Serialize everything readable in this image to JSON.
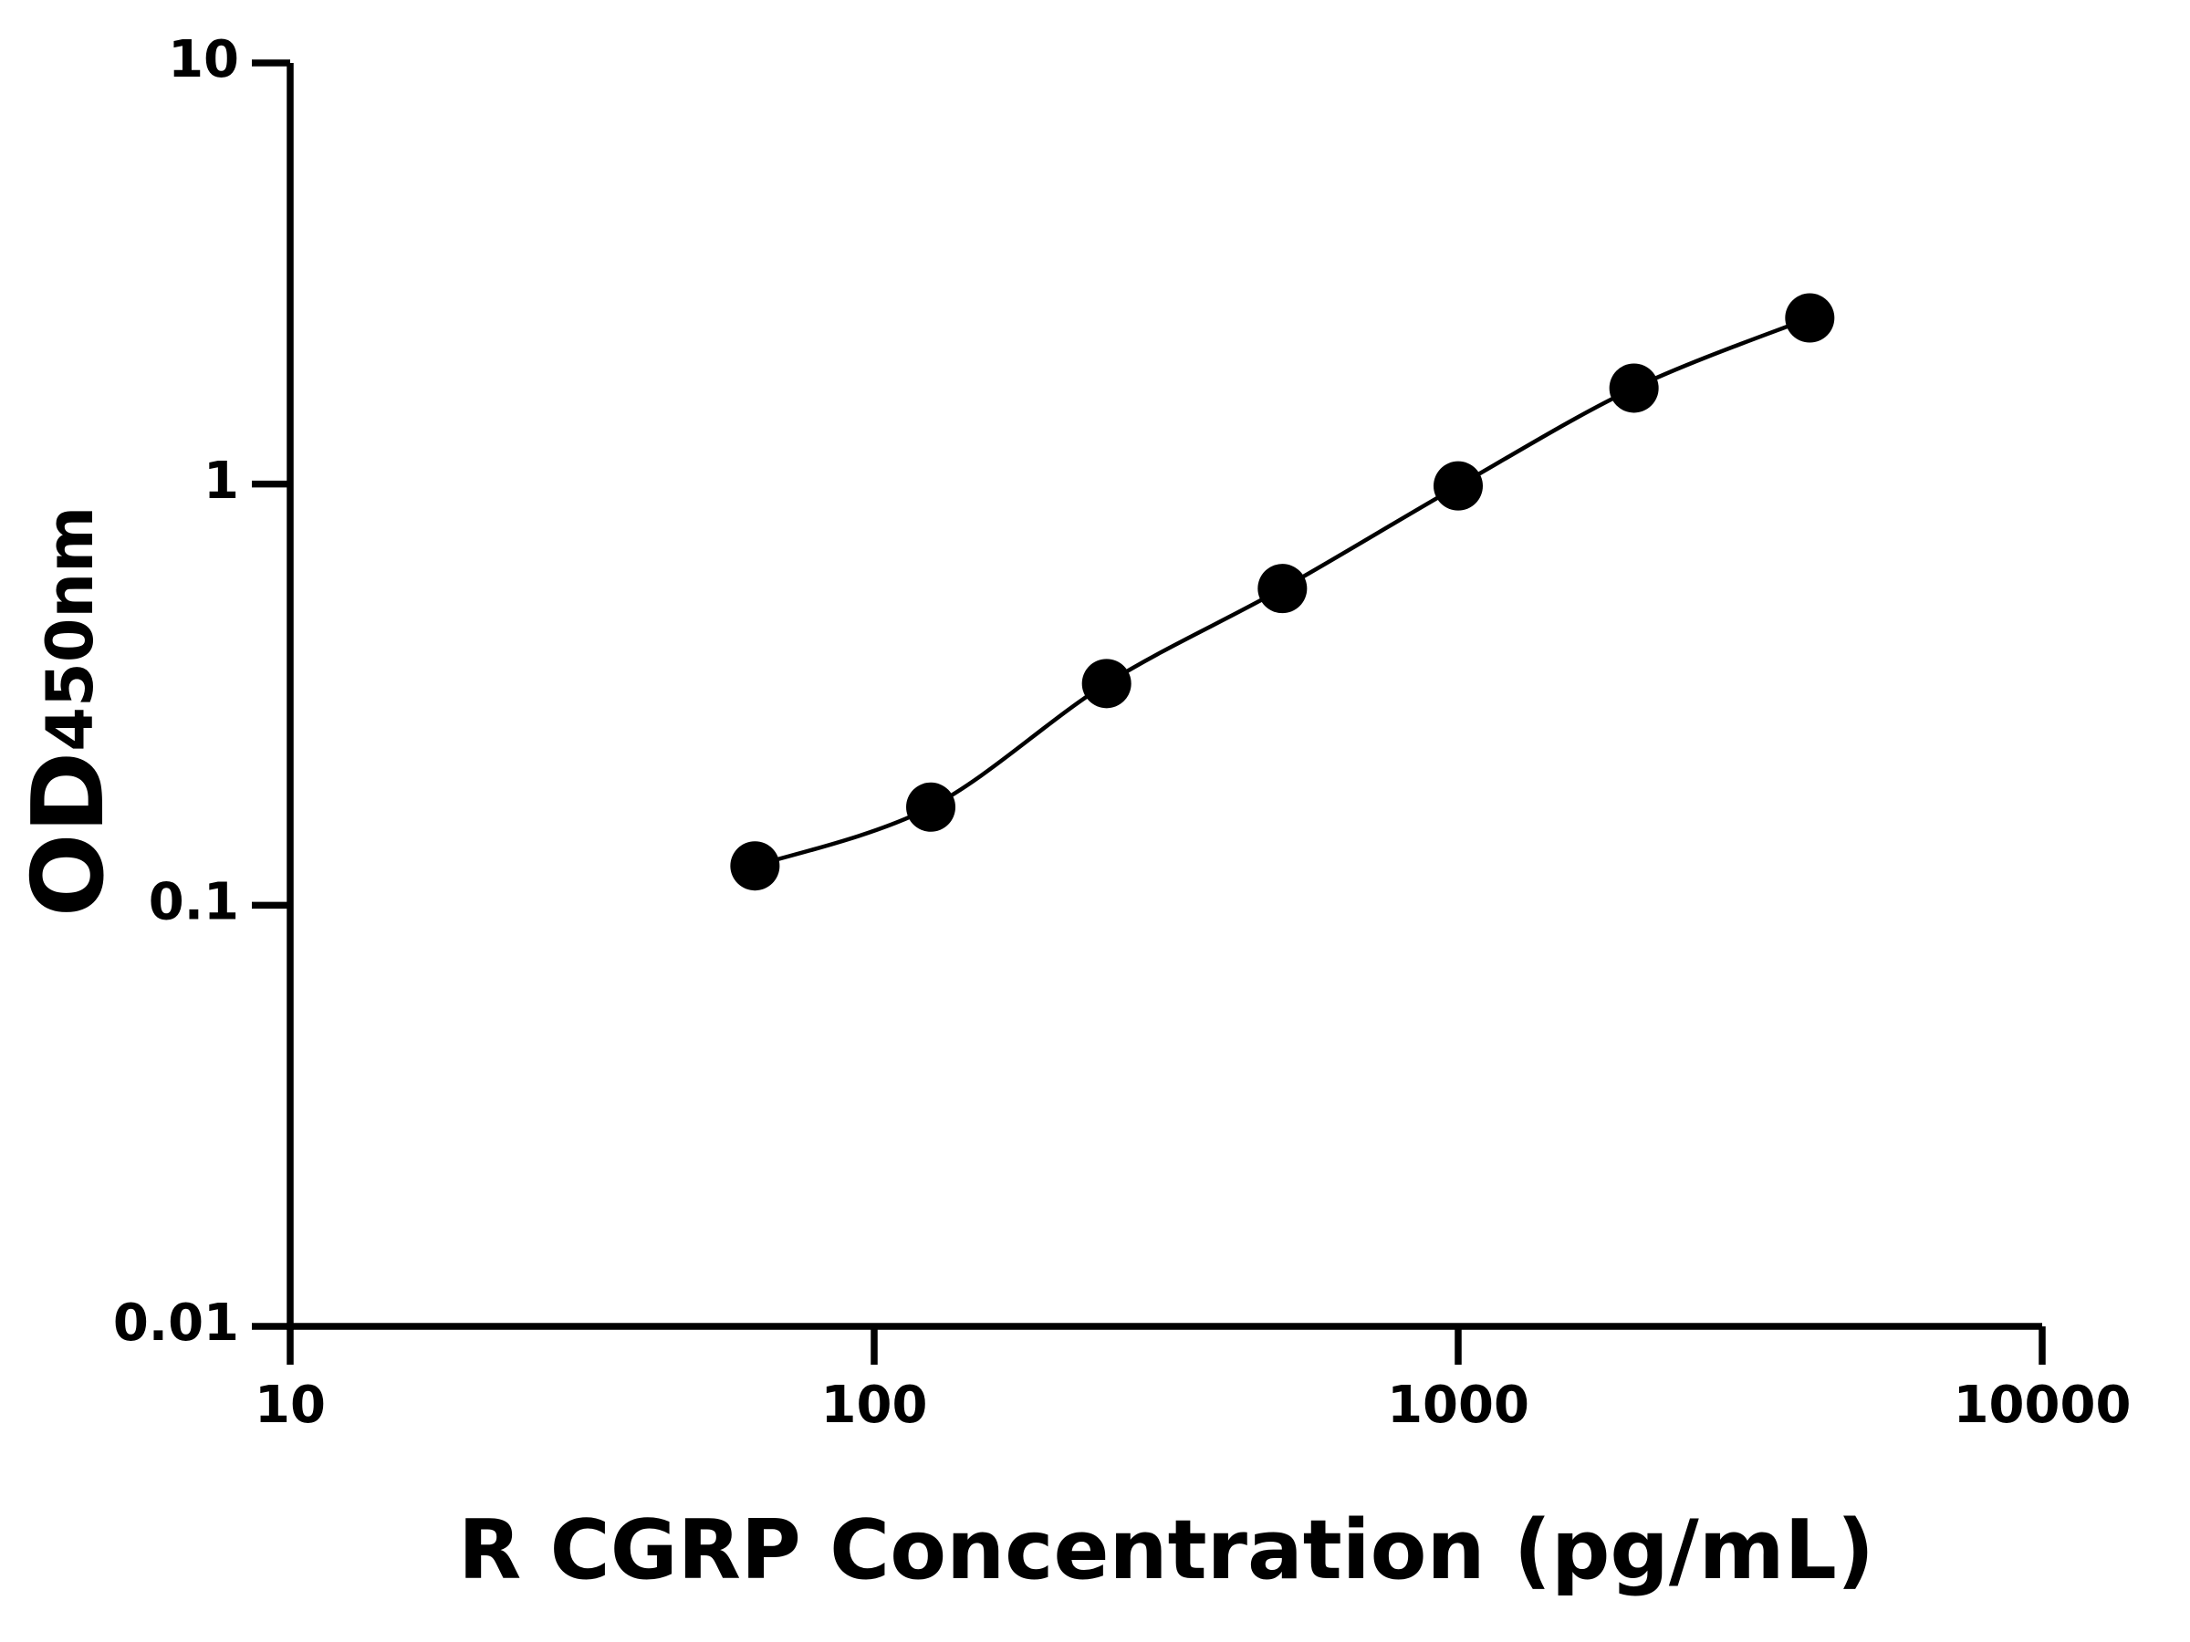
{
  "chart_data": {
    "type": "scatter",
    "x_label": "R CGRP Concentration (pg/mL)",
    "y_label": "OD",
    "y_label_subscript": "450nm",
    "x": [
      62.5,
      125,
      250,
      500,
      1000,
      2000,
      4000
    ],
    "values": [
      0.124,
      0.171,
      0.336,
      0.565,
      0.99,
      1.69,
      2.48
    ],
    "color": "#000000",
    "fit_line": true,
    "xscale": "log",
    "yscale": "log",
    "xlim": [
      10,
      10000
    ],
    "xticks": [
      10,
      100,
      1000,
      10000
    ],
    "ylim": [
      0.01,
      10
    ],
    "yticks": [
      0.01,
      0.1,
      1,
      10
    ]
  }
}
